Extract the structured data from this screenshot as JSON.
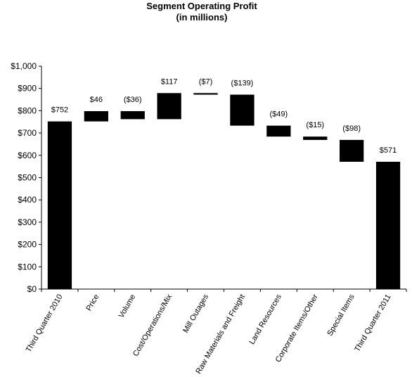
{
  "chart_data": {
    "type": "bar",
    "variant": "waterfall",
    "title": "Segment Operating Profit",
    "subtitle": "(in millions)",
    "xlabel": "",
    "ylabel": "",
    "ylim": [
      0,
      1000
    ],
    "yticks": [
      0,
      100,
      200,
      300,
      400,
      500,
      600,
      700,
      800,
      900,
      1000
    ],
    "ytick_labels": [
      "$0",
      "$100",
      "$200",
      "$300",
      "$400",
      "$500",
      "$600",
      "$700",
      "$800",
      "$900",
      "$1,000"
    ],
    "grid": false,
    "legend": "none",
    "bar_color": "#000000",
    "categories": [
      "Third Quarter 2010",
      "Price",
      "Volume",
      "Cost/Operations/Mix",
      "Mill Outages",
      "Raw Materials and Freight",
      "Land Resources",
      "Corporate Items/Other",
      "Special Items",
      "Third Quarter 2011"
    ],
    "bars": [
      {
        "base": 0,
        "top": 752,
        "label": "$752"
      },
      {
        "base": 752,
        "top": 798,
        "label": "$46"
      },
      {
        "base": 762,
        "top": 798,
        "label": "($36)"
      },
      {
        "base": 762,
        "top": 879,
        "label": "$117"
      },
      {
        "base": 872,
        "top": 879,
        "label": "($7)"
      },
      {
        "base": 733,
        "top": 872,
        "label": "($139)"
      },
      {
        "base": 684,
        "top": 733,
        "label": "($49)"
      },
      {
        "base": 669,
        "top": 684,
        "label": "($15)"
      },
      {
        "base": 571,
        "top": 669,
        "label": "($98)"
      },
      {
        "base": 0,
        "top": 571,
        "label": "$571"
      }
    ]
  }
}
